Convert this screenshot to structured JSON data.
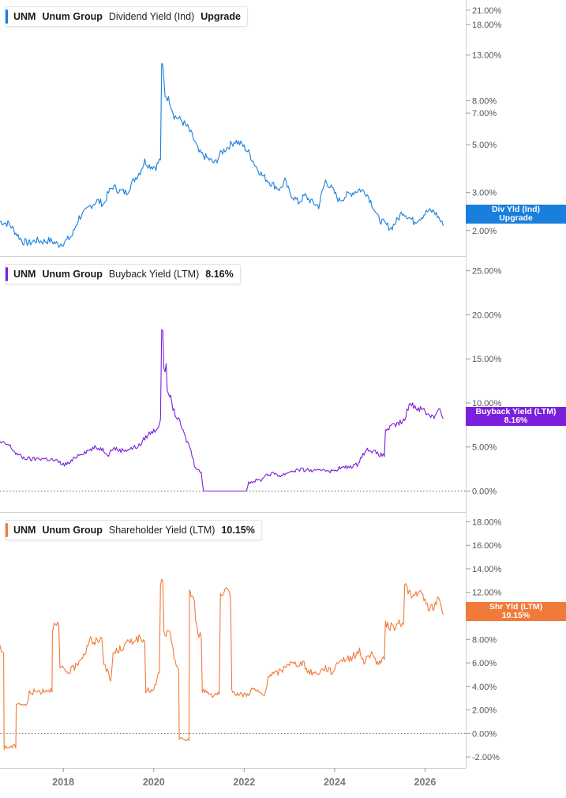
{
  "panels": [
    {
      "ticker": "UNM",
      "company": "Unum Group",
      "metric": "Dividend Yield (Ind)",
      "value_text": "Upgrade",
      "tag_line1": "Div Yld (Ind)",
      "tag_line2": "Upgrade",
      "color": "#1a7fdc",
      "scale": "log",
      "y_ticks": [
        "21.00%",
        "18.00%",
        "13.00%",
        "8.00%",
        "7.00%",
        "5.00%",
        "3.00%",
        "2.00%"
      ]
    },
    {
      "ticker": "UNM",
      "company": "Unum Group",
      "metric": "Buyback Yield (LTM)",
      "value_text": "8.16%",
      "tag_line1": "Buyback Yield (LTM)",
      "tag_line2": "8.16%",
      "color": "#7b1fdc",
      "scale": "linear",
      "y_ticks": [
        "25.00%",
        "20.00%",
        "15.00%",
        "10.00%",
        "5.00%",
        "0.00%"
      ]
    },
    {
      "ticker": "UNM",
      "company": "Unum Group",
      "metric": "Shareholder Yield (LTM)",
      "value_text": "10.15%",
      "tag_line1": "Shr Yld (LTM)",
      "tag_line2": "10.15%",
      "color": "#f07a3a",
      "scale": "linear",
      "y_ticks": [
        "18.00%",
        "16.00%",
        "14.00%",
        "12.00%",
        "10.00%",
        "8.00%",
        "6.00%",
        "4.00%",
        "2.00%",
        "0.00%",
        "-2.00%"
      ]
    }
  ],
  "x_axis": {
    "labels": [
      "2018",
      "2020",
      "2022",
      "2024",
      "2026"
    ]
  },
  "chart_data": [
    {
      "type": "line",
      "title": "UNM Unum Group Dividend Yield (Ind)",
      "y_scale": "log",
      "ylim": [
        1.55,
        23
      ],
      "x_range": [
        2016.6,
        2026.9
      ],
      "grid": false,
      "legend": "top-left",
      "series": [
        {
          "name": "Dividend Yield (Ind)",
          "points": [
            [
              2016.6,
              2.2
            ],
            [
              2016.8,
              2.15
            ],
            [
              2016.95,
              1.95
            ],
            [
              2017.1,
              1.78
            ],
            [
              2017.25,
              1.75
            ],
            [
              2017.4,
              1.8
            ],
            [
              2017.55,
              1.78
            ],
            [
              2017.7,
              1.8
            ],
            [
              2017.9,
              1.72
            ],
            [
              2018.05,
              1.78
            ],
            [
              2018.2,
              1.9
            ],
            [
              2018.35,
              2.3
            ],
            [
              2018.5,
              2.45
            ],
            [
              2018.6,
              2.6
            ],
            [
              2018.75,
              2.75
            ],
            [
              2018.9,
              2.65
            ],
            [
              2019.0,
              3.0
            ],
            [
              2019.1,
              3.2
            ],
            [
              2019.25,
              3.05
            ],
            [
              2019.4,
              3.0
            ],
            [
              2019.55,
              3.4
            ],
            [
              2019.7,
              3.75
            ],
            [
              2019.8,
              4.2
            ],
            [
              2019.9,
              4.0
            ],
            [
              2020.05,
              3.95
            ],
            [
              2020.15,
              4.3
            ],
            [
              2020.2,
              11.5
            ],
            [
              2020.25,
              8.5
            ],
            [
              2020.35,
              8.0
            ],
            [
              2020.45,
              6.8
            ],
            [
              2020.6,
              6.5
            ],
            [
              2020.75,
              6.0
            ],
            [
              2020.85,
              5.5
            ],
            [
              2021.0,
              4.6
            ],
            [
              2021.2,
              4.3
            ],
            [
              2021.35,
              4.1
            ],
            [
              2021.5,
              4.6
            ],
            [
              2021.65,
              4.9
            ],
            [
              2021.8,
              5.2
            ],
            [
              2021.95,
              5.0
            ],
            [
              2022.1,
              4.6
            ],
            [
              2022.25,
              4.0
            ],
            [
              2022.4,
              3.6
            ],
            [
              2022.6,
              3.3
            ],
            [
              2022.8,
              3.1
            ],
            [
              2022.9,
              3.4
            ],
            [
              2023.0,
              3.0
            ],
            [
              2023.2,
              2.7
            ],
            [
              2023.35,
              2.9
            ],
            [
              2023.5,
              2.7
            ],
            [
              2023.65,
              2.6
            ],
            [
              2023.8,
              3.4
            ],
            [
              2023.95,
              3.1
            ],
            [
              2024.1,
              2.75
            ],
            [
              2024.25,
              2.9
            ],
            [
              2024.4,
              3.0
            ],
            [
              2024.55,
              3.1
            ],
            [
              2024.7,
              3.0
            ],
            [
              2024.85,
              2.6
            ],
            [
              2024.95,
              2.3
            ],
            [
              2025.1,
              2.15
            ],
            [
              2025.25,
              2.05
            ],
            [
              2025.4,
              2.25
            ],
            [
              2025.5,
              2.45
            ],
            [
              2025.6,
              2.35
            ],
            [
              2025.75,
              2.2
            ],
            [
              2025.9,
              2.3
            ],
            [
              2026.05,
              2.45
            ],
            [
              2026.2,
              2.45
            ],
            [
              2026.3,
              2.3
            ],
            [
              2026.4,
              2.1
            ]
          ]
        }
      ]
    },
    {
      "type": "line",
      "title": "UNM Unum Group Buyback Yield (LTM)",
      "ylim": [
        -2.2,
        26.5
      ],
      "x_range": [
        2016.6,
        2026.9
      ],
      "grid": false,
      "legend": "top-left",
      "series": [
        {
          "name": "Buyback Yield (LTM)",
          "points": [
            [
              2016.6,
              5.5
            ],
            [
              2016.8,
              5.2
            ],
            [
              2016.95,
              4.3
            ],
            [
              2017.1,
              3.8
            ],
            [
              2017.3,
              3.6
            ],
            [
              2017.5,
              3.7
            ],
            [
              2017.7,
              3.6
            ],
            [
              2017.85,
              3.4
            ],
            [
              2018.0,
              3.0
            ],
            [
              2018.15,
              3.2
            ],
            [
              2018.3,
              4.0
            ],
            [
              2018.4,
              4.3
            ],
            [
              2018.55,
              4.6
            ],
            [
              2018.7,
              4.9
            ],
            [
              2018.85,
              4.8
            ],
            [
              2019.0,
              4.2
            ],
            [
              2019.1,
              4.9
            ],
            [
              2019.25,
              4.6
            ],
            [
              2019.4,
              4.7
            ],
            [
              2019.55,
              4.9
            ],
            [
              2019.7,
              5.2
            ],
            [
              2019.8,
              6.0
            ],
            [
              2019.9,
              6.5
            ],
            [
              2020.05,
              7.0
            ],
            [
              2020.15,
              7.8
            ],
            [
              2020.2,
              18.5
            ],
            [
              2020.25,
              14.0
            ],
            [
              2020.35,
              11.0
            ],
            [
              2020.45,
              9.0
            ],
            [
              2020.6,
              7.5
            ],
            [
              2020.7,
              6.0
            ],
            [
              2020.8,
              5.0
            ],
            [
              2020.9,
              3.0
            ],
            [
              2021.05,
              2.0
            ],
            [
              2021.1,
              0.0
            ],
            [
              2021.5,
              0.0
            ],
            [
              2022.05,
              0.0
            ],
            [
              2022.1,
              1.0
            ],
            [
              2022.4,
              1.3
            ],
            [
              2022.45,
              1.8
            ],
            [
              2022.7,
              2.0
            ],
            [
              2022.8,
              1.7
            ],
            [
              2023.0,
              2.2
            ],
            [
              2023.2,
              2.4
            ],
            [
              2023.4,
              2.4
            ],
            [
              2023.6,
              2.2
            ],
            [
              2023.75,
              2.5
            ],
            [
              2023.95,
              2.2
            ],
            [
              2024.1,
              2.6
            ],
            [
              2024.3,
              2.7
            ],
            [
              2024.5,
              3.0
            ],
            [
              2024.6,
              4.0
            ],
            [
              2024.75,
              4.8
            ],
            [
              2024.95,
              4.2
            ],
            [
              2025.1,
              4.0
            ],
            [
              2025.15,
              7.0
            ],
            [
              2025.35,
              7.5
            ],
            [
              2025.55,
              8.0
            ],
            [
              2025.65,
              10.0
            ],
            [
              2025.8,
              9.5
            ],
            [
              2025.95,
              9.3
            ],
            [
              2026.05,
              8.8
            ],
            [
              2026.2,
              8.4
            ],
            [
              2026.3,
              9.5
            ],
            [
              2026.4,
              8.2
            ]
          ]
        }
      ]
    },
    {
      "type": "line",
      "title": "UNM Unum Group Shareholder Yield (LTM)",
      "ylim": [
        -2.8,
        18.7
      ],
      "x_range": [
        2016.6,
        2026.9
      ],
      "grid": false,
      "legend": "top-left",
      "series": [
        {
          "name": "Shareholder Yield (LTM)",
          "points": [
            [
              2016.6,
              7.2
            ],
            [
              2016.68,
              6.8
            ],
            [
              2016.7,
              -1.2
            ],
            [
              2016.95,
              -1.1
            ],
            [
              2016.97,
              2.6
            ],
            [
              2017.2,
              2.4
            ],
            [
              2017.25,
              3.5
            ],
            [
              2017.5,
              3.6
            ],
            [
              2017.6,
              3.7
            ],
            [
              2017.75,
              3.7
            ],
            [
              2017.77,
              9.1
            ],
            [
              2017.9,
              9.2
            ],
            [
              2017.95,
              5.5
            ],
            [
              2018.1,
              5.2
            ],
            [
              2018.25,
              5.6
            ],
            [
              2018.4,
              6.5
            ],
            [
              2018.5,
              7.0
            ],
            [
              2018.6,
              8.3
            ],
            [
              2018.65,
              7.4
            ],
            [
              2018.75,
              8.0
            ],
            [
              2018.85,
              8.0
            ],
            [
              2018.9,
              6.1
            ],
            [
              2019.05,
              4.4
            ],
            [
              2019.1,
              6.8
            ],
            [
              2019.3,
              7.3
            ],
            [
              2019.5,
              7.9
            ],
            [
              2019.7,
              8.1
            ],
            [
              2019.8,
              7.5
            ],
            [
              2019.85,
              3.7
            ],
            [
              2020.0,
              3.6
            ],
            [
              2020.1,
              5.0
            ],
            [
              2020.2,
              12.9
            ],
            [
              2020.25,
              8.5
            ],
            [
              2020.35,
              8.5
            ],
            [
              2020.45,
              6.5
            ],
            [
              2020.55,
              5.5
            ],
            [
              2020.58,
              -0.5
            ],
            [
              2020.78,
              -0.5
            ],
            [
              2020.8,
              12.1
            ],
            [
              2020.9,
              11.0
            ],
            [
              2020.95,
              9.0
            ],
            [
              2021.05,
              8.0
            ],
            [
              2021.1,
              3.7
            ],
            [
              2021.3,
              3.3
            ],
            [
              2021.4,
              3.4
            ],
            [
              2021.45,
              3.4
            ],
            [
              2021.5,
              11.5
            ],
            [
              2021.6,
              12.0
            ],
            [
              2021.7,
              11.8
            ],
            [
              2021.75,
              3.6
            ],
            [
              2021.9,
              3.3
            ],
            [
              2022.05,
              3.3
            ],
            [
              2022.2,
              3.8
            ],
            [
              2022.35,
              3.4
            ],
            [
              2022.45,
              3.2
            ],
            [
              2022.55,
              5.0
            ],
            [
              2022.7,
              5.1
            ],
            [
              2022.85,
              5.4
            ],
            [
              2022.95,
              6.0
            ],
            [
              2023.1,
              5.9
            ],
            [
              2023.3,
              6.0
            ],
            [
              2023.4,
              5.3
            ],
            [
              2023.6,
              5.1
            ],
            [
              2023.8,
              5.6
            ],
            [
              2023.95,
              5.2
            ],
            [
              2024.1,
              6.3
            ],
            [
              2024.25,
              6.3
            ],
            [
              2024.4,
              6.5
            ],
            [
              2024.55,
              7.0
            ],
            [
              2024.65,
              6.1
            ],
            [
              2024.8,
              6.8
            ],
            [
              2024.95,
              6.0
            ],
            [
              2025.1,
              6.3
            ],
            [
              2025.15,
              9.2
            ],
            [
              2025.3,
              9.0
            ],
            [
              2025.5,
              9.5
            ],
            [
              2025.6,
              12.5
            ],
            [
              2025.7,
              11.5
            ],
            [
              2025.85,
              12.0
            ],
            [
              2025.95,
              11.6
            ],
            [
              2026.05,
              10.8
            ],
            [
              2026.2,
              10.6
            ],
            [
              2026.3,
              11.8
            ],
            [
              2026.4,
              10.1
            ]
          ]
        }
      ]
    }
  ]
}
